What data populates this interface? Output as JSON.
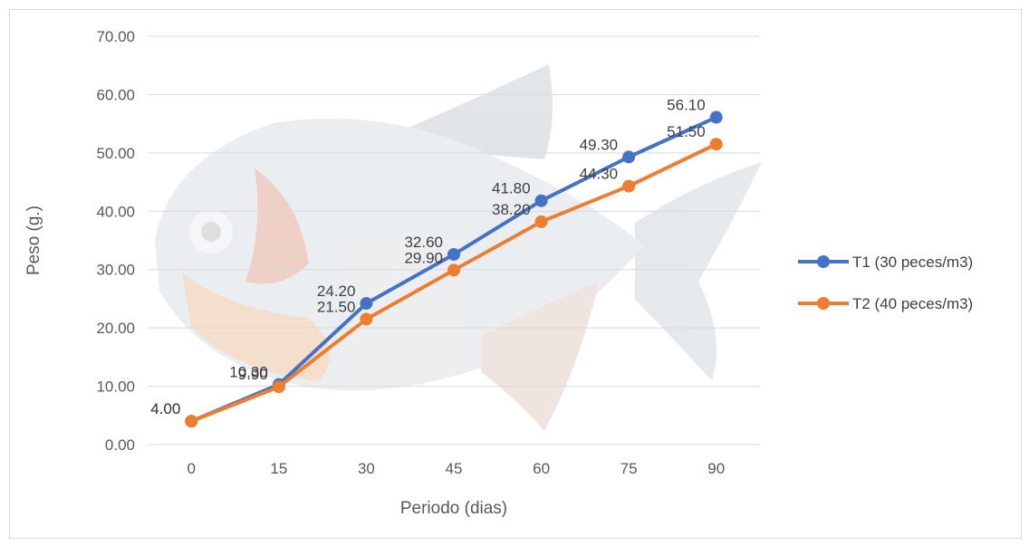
{
  "chart_data": {
    "type": "line",
    "x": [
      0,
      15,
      30,
      45,
      60,
      75,
      90
    ],
    "xlabel": "Periodo (dias)",
    "ylabel": "Peso (g.)",
    "ylim": [
      0,
      70
    ],
    "yticks": [
      "0.00",
      "10.00",
      "20.00",
      "30.00",
      "40.00",
      "50.00",
      "60.00",
      "70.00"
    ],
    "grid": true,
    "legend": "right",
    "background_image": "fish-image",
    "series": [
      {
        "name": "T1 (30 peces/m3)",
        "color": "#4472C4",
        "values": [
          4.0,
          10.3,
          24.2,
          32.6,
          41.8,
          49.3,
          56.1
        ],
        "labels": [
          "4.00",
          "10.30",
          "24.20",
          "32.60",
          "41.80",
          "49.30",
          "56.10"
        ]
      },
      {
        "name": "T2 (40 peces/m3)",
        "color": "#ED7D31",
        "values": [
          4.0,
          9.9,
          21.5,
          29.9,
          38.2,
          44.3,
          51.5
        ],
        "labels": [
          "4.00",
          "9.90",
          "21.50",
          "29.90",
          "38.20",
          "44.30",
          "51.50"
        ]
      }
    ]
  }
}
